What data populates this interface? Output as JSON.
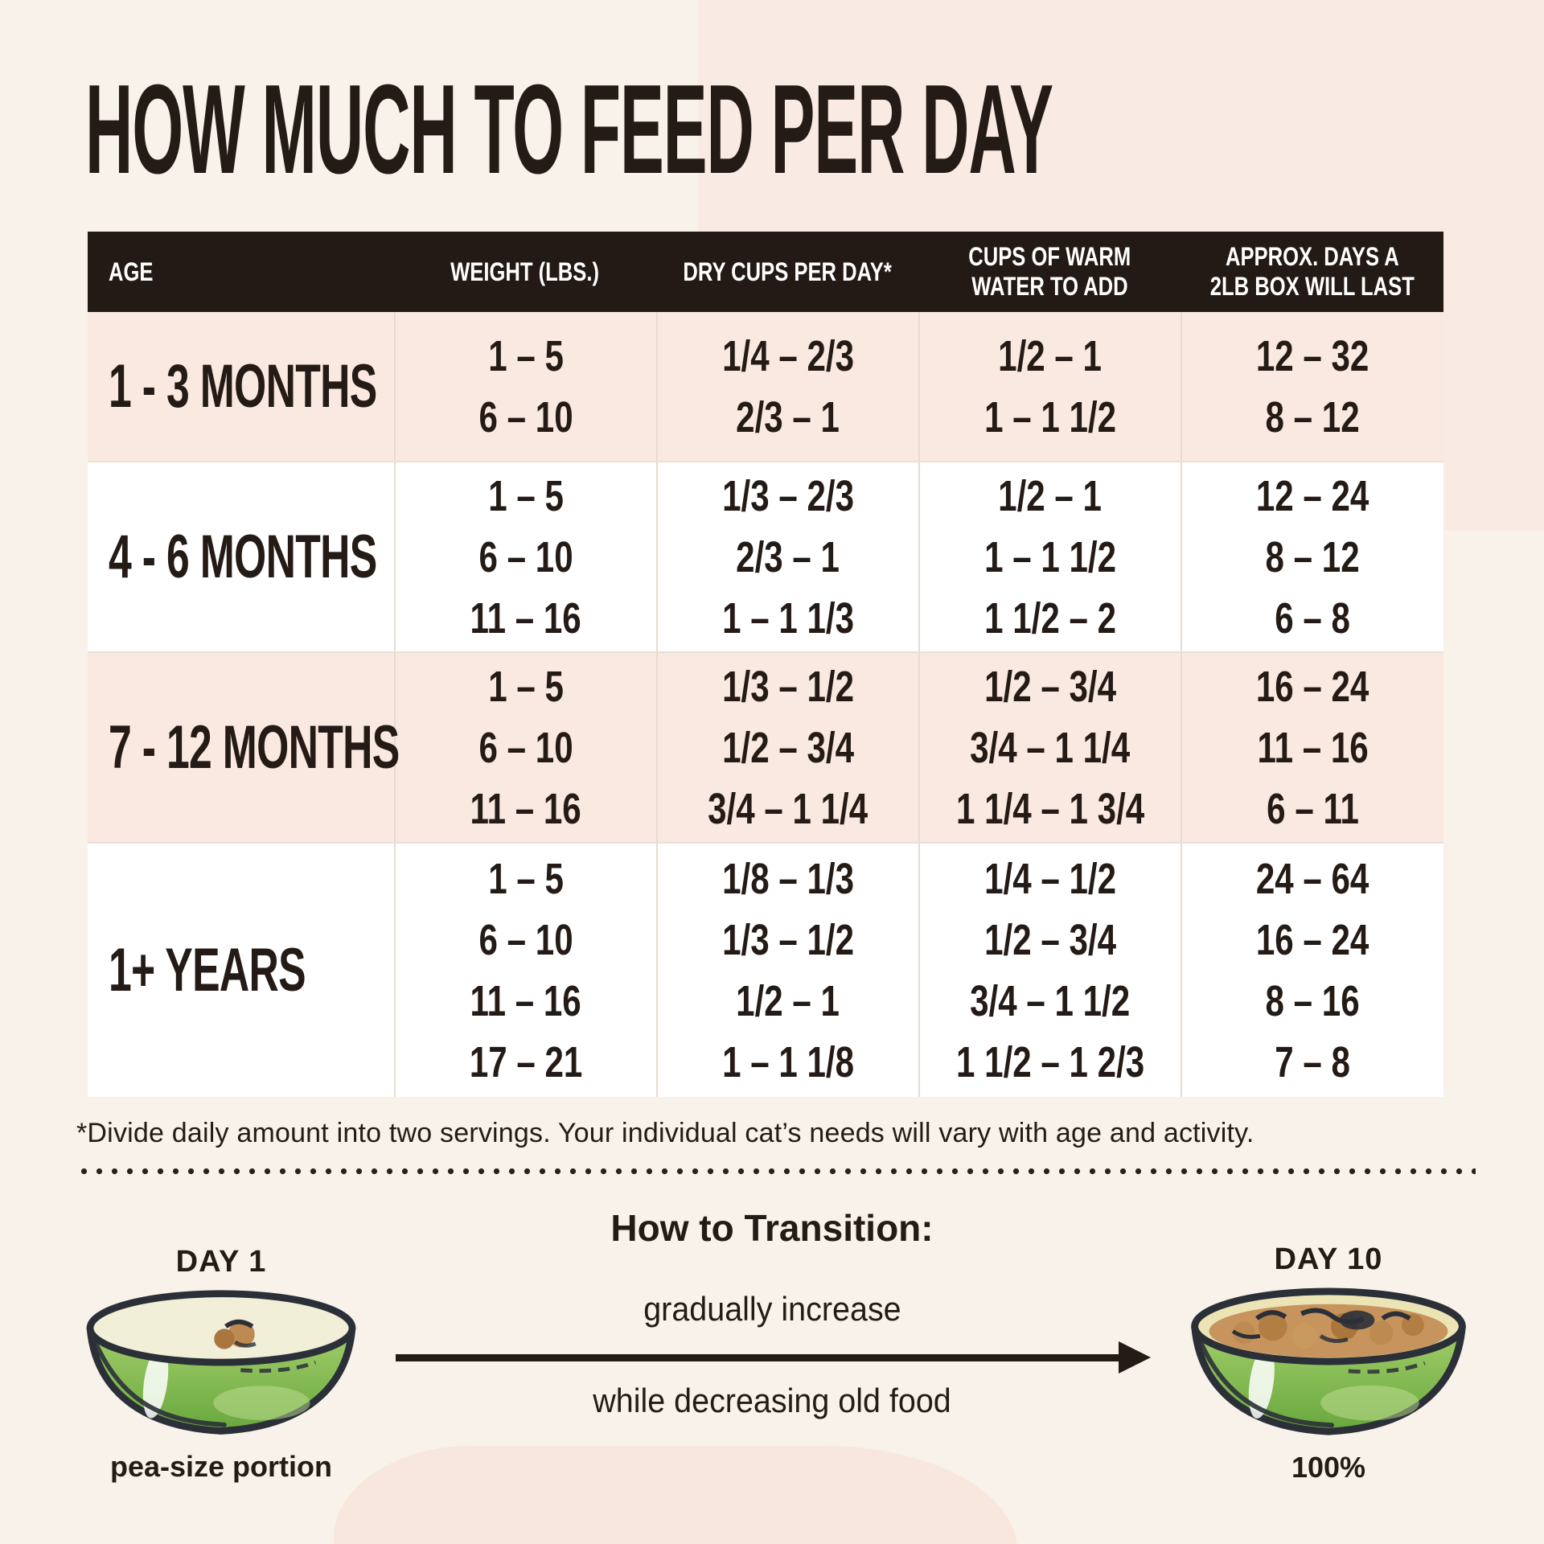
{
  "title": "HOW MUCH TO FEED PER DAY",
  "table": {
    "headers": {
      "age": "AGE",
      "weight": "WEIGHT (LBS.)",
      "dry_cups": "DRY CUPS PER DAY*",
      "water_line1": "CUPS OF WARM",
      "water_line2": "WATER TO ADD",
      "days_line1": "APPROX. DAYS A",
      "days_line2": "2LB BOX WILL LAST"
    }
  },
  "chart_data": {
    "type": "table",
    "title": "HOW MUCH TO FEED PER DAY",
    "columns": [
      "AGE",
      "WEIGHT (LBS.)",
      "DRY CUPS PER DAY*",
      "CUPS OF WARM WATER TO ADD",
      "APPROX. DAYS A 2LB BOX WILL LAST"
    ],
    "rows": [
      {
        "age": "1 - 3 MONTHS",
        "weight_lbs": [
          "1 – 5",
          "6 – 10"
        ],
        "dry_cups_per_day": [
          "1/4 – 2/3",
          "2/3 – 1"
        ],
        "cups_warm_water": [
          "1/2 – 1",
          "1 – 1 1/2"
        ],
        "days_2lb_box_lasts": [
          "12 – 32",
          "8 – 12"
        ]
      },
      {
        "age": "4 - 6 MONTHS",
        "weight_lbs": [
          "1 – 5",
          "6 – 10",
          "11 – 16"
        ],
        "dry_cups_per_day": [
          "1/3 – 2/3",
          "2/3 – 1",
          "1 – 1 1/3"
        ],
        "cups_warm_water": [
          "1/2 – 1",
          "1 – 1 1/2",
          "1 1/2 – 2"
        ],
        "days_2lb_box_lasts": [
          "12 – 24",
          "8 – 12",
          "6 – 8"
        ]
      },
      {
        "age": "7 - 12 MONTHS",
        "weight_lbs": [
          "1 – 5",
          "6 – 10",
          "11 – 16"
        ],
        "dry_cups_per_day": [
          "1/3 – 1/2",
          "1/2 – 3/4",
          "3/4 – 1 1/4"
        ],
        "cups_warm_water": [
          "1/2 – 3/4",
          "3/4 – 1 1/4",
          "1 1/4 – 1 3/4"
        ],
        "days_2lb_box_lasts": [
          "16 – 24",
          "11 – 16",
          "6 – 11"
        ]
      },
      {
        "age": "1+ YEARS",
        "weight_lbs": [
          "1 – 5",
          "6 – 10",
          "11 – 16",
          "17 – 21"
        ],
        "dry_cups_per_day": [
          "1/8 – 1/3",
          "1/3 – 1/2",
          "1/2 – 1",
          "1 – 1 1/8"
        ],
        "cups_warm_water": [
          "1/4 – 1/2",
          "1/2 – 3/4",
          "3/4 – 1 1/2",
          "1 1/2 – 1 2/3"
        ],
        "days_2lb_box_lasts": [
          "24 – 64",
          "16 – 24",
          "8 – 16",
          "7 – 8"
        ]
      }
    ],
    "footnote": "*Divide daily amount into two servings. Your individual cat’s needs will vary with age and activity."
  },
  "transition": {
    "heading": "How to Transition:",
    "start_label": "DAY 1",
    "start_caption": "pea-size portion",
    "end_label": "DAY 10",
    "end_caption": "100%",
    "arrow_text_top": "gradually increase",
    "arrow_text_bottom": "while decreasing old food"
  },
  "icons": {
    "start_bowl": "green-bowl-pea-size-portion-icon",
    "end_bowl": "green-bowl-full-icon"
  },
  "colors": {
    "background": "#f8f2ea",
    "background_blob": "#f9ebe3",
    "bottom_blob": "#f8e7dd",
    "header_bg": "#241a15",
    "row_highlight": "#f9e9e0",
    "row_plain": "#ffffff",
    "text": "#241b16",
    "bowl_green": "#7ab648"
  }
}
